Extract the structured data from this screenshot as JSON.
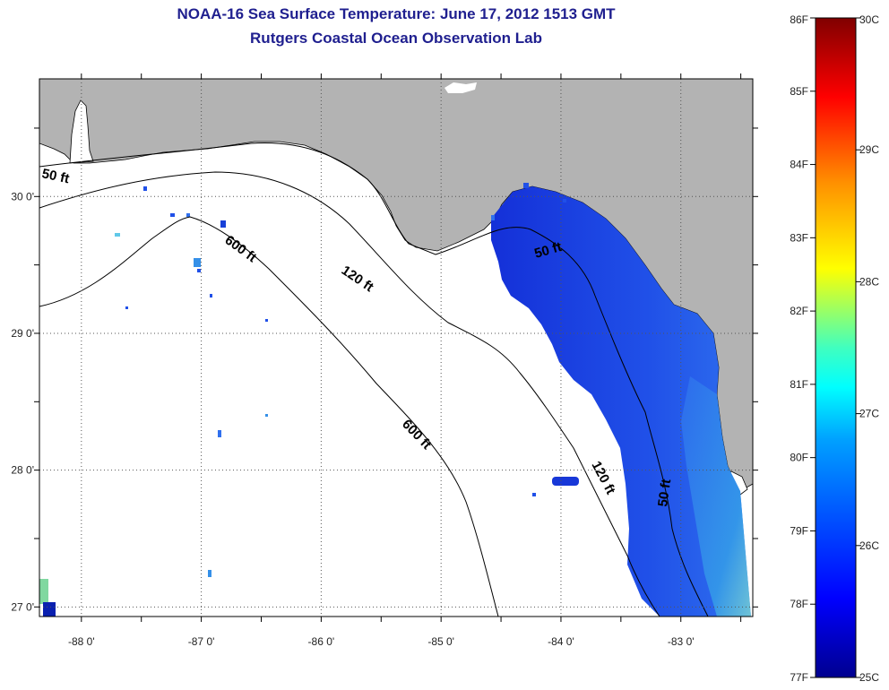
{
  "title_line1": "NOAA-16 Sea Surface Temperature:  June 17, 2012 1513 GMT",
  "title_line2": "Rutgers Coastal Ocean Observation Lab",
  "map": {
    "lon_ticks": [
      "-88 0'",
      "-87 0'",
      "-86 0'",
      "-85 0'",
      "-84 0'",
      "-83 0'"
    ],
    "lat_ticks": [
      "30 0'",
      "29 0'",
      "28 0'",
      "27 0'"
    ],
    "lon_range": [
      -88.35,
      -82.4
    ],
    "lat_range": [
      26.93,
      30.86
    ],
    "land_color": "#b3b3b3",
    "water_color": "#ffffff",
    "contour_labels": {
      "c50_west": "50 ft",
      "c50_bigbend": "50 ft",
      "c50_south": "50 ft",
      "c120_north": "120 ft",
      "c120_south": "120 ft",
      "c600_north": "600 ft",
      "c600_mid": "600 ft"
    }
  },
  "colorbar": {
    "fahrenheit_labels": [
      "86F",
      "85F",
      "84F",
      "83F",
      "82F",
      "81F",
      "80F",
      "79F",
      "78F",
      "77F"
    ],
    "celsius_labels": [
      "30C",
      "29C",
      "28C",
      "27C",
      "26C",
      "25C"
    ],
    "min_c": 25,
    "max_c": 30,
    "colormap": "jet"
  }
}
